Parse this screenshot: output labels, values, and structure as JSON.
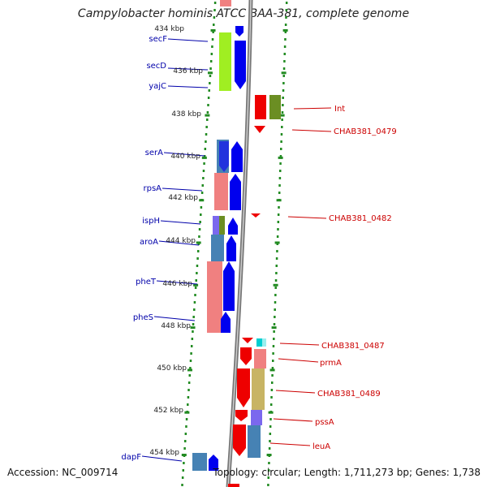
{
  "title": "Campylobacter hominis ATCC BAA-381, complete genome",
  "accession": "Accession: NC_009714",
  "topology": "Topology: circular; Length: 1,711,273 bp; Genes: 1,738",
  "kbp_labels": [
    "434 kbp",
    "436 kbp",
    "438 kbp",
    "440 kbp",
    "442 kbp",
    "444 kbp",
    "446 kbp",
    "448 kbp",
    "450 kbp",
    "452 kbp",
    "454 kbp"
  ],
  "left_genes": [
    "secF",
    "secD",
    "yajC",
    "serA",
    "rpsA",
    "ispH",
    "aroA",
    "pheT",
    "pheS",
    "dapF"
  ],
  "right_genes": [
    "Int",
    "CHAB381_0479",
    "CHAB381_0482",
    "CHAB381_0487",
    "prmA",
    "CHAB381_0489",
    "pssA",
    "leuA"
  ],
  "colors": {
    "left_label": "#0000aa",
    "right_label": "#cc0000",
    "forward_cds": "#0000ee",
    "reverse_cds": "#ee0000",
    "backbone": "#888888",
    "scale_tick": "#228b22",
    "cog_green": "#99ee22",
    "cog_salmon": "#f08080",
    "cog_steel": "#4682b4",
    "cog_olive": "#6b8e23",
    "cog_khaki": "#c8b464",
    "cog_purple": "#7b68ee",
    "cog_cyan": "#00ced1"
  }
}
